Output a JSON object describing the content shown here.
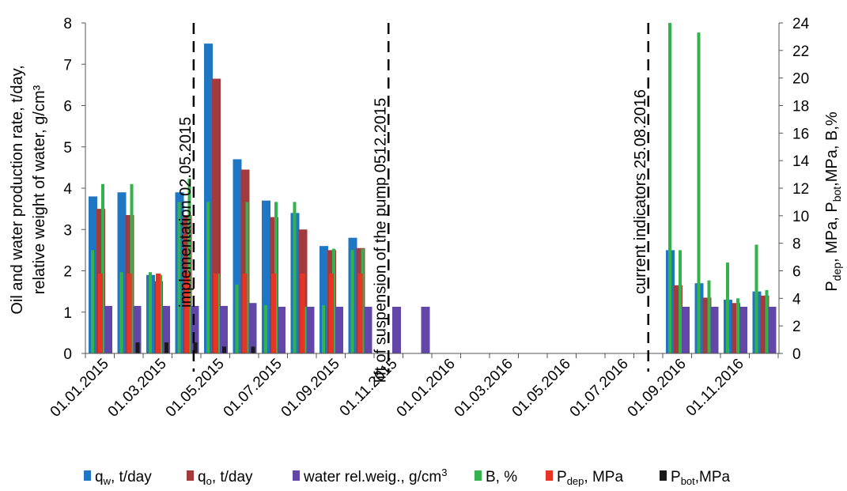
{
  "chart_data": {
    "type": "bar",
    "x_dates": [
      "01.01.2015",
      "01.02.2015",
      "01.03.2015",
      "01.04.2015",
      "01.05.2015",
      "01.06.2015",
      "01.07.2015",
      "01.08.2015",
      "01.09.2015",
      "01.10.2015",
      "01.11.2015",
      "01.12.2015",
      "01.01.2016",
      "01.02.2016",
      "01.03.2016",
      "01.04.2016",
      "01.05.2016",
      "01.06.2016",
      "01.07.2016",
      "01.08.2016",
      "01.09.2016",
      "01.10.2016",
      "01.11.2016",
      "01.12.2016"
    ],
    "x_tick_labels": [
      "01.01.2015",
      "01.03.2015",
      "01.05.2015",
      "01.07.2015",
      "01.09.2015",
      "01.11.2015",
      "01.01.2016",
      "01.03.2016",
      "01.05.2016",
      "01.07.2016",
      "01.09.2016",
      "01.11.2016"
    ],
    "ylabel_left": [
      "Oil and water production rate, t/day,",
      "relative weight of water, g/cm³"
    ],
    "ylabel_right": {
      "p1": "P",
      "s1": "dep",
      "p2": ", MPa, P",
      "s2": "bot",
      "p3": ",MPa, B,%"
    },
    "ylim_left": [
      0,
      8
    ],
    "y_ticks_left": [
      "0",
      "1",
      "2",
      "3",
      "4",
      "5",
      "6",
      "7",
      "8"
    ],
    "ylim_right": [
      0,
      24
    ],
    "y_ticks_right": [
      "0",
      "2",
      "4",
      "6",
      "8",
      "10",
      "12",
      "14",
      "16",
      "18",
      "20",
      "22",
      "24"
    ],
    "series": [
      {
        "key": "qw",
        "color": "#1f77c4",
        "axis": "left",
        "values": [
          3.8,
          3.9,
          1.9,
          3.9,
          7.5,
          4.7,
          3.7,
          3.4,
          2.6,
          2.8,
          null,
          null,
          null,
          null,
          null,
          null,
          null,
          null,
          null,
          null,
          2.5,
          1.7,
          1.3,
          1.5
        ]
      },
      {
        "key": "qo",
        "color": "#a33a3e",
        "axis": "left",
        "values": [
          3.5,
          3.35,
          1.75,
          3.35,
          6.65,
          4.45,
          3.3,
          3.0,
          2.5,
          2.55,
          null,
          null,
          null,
          null,
          null,
          null,
          null,
          null,
          null,
          null,
          1.65,
          1.35,
          1.22,
          1.4
        ]
      },
      {
        "key": "wrw",
        "color": "#6247a8",
        "axis": "left",
        "values": [
          1.15,
          1.15,
          1.15,
          1.15,
          1.15,
          1.22,
          1.13,
          1.13,
          1.13,
          1.13,
          1.13,
          1.13,
          null,
          null,
          null,
          null,
          null,
          null,
          null,
          null,
          1.13,
          1.13,
          1.13,
          1.13
        ]
      },
      {
        "key": "B",
        "color": "#34b24c",
        "axis": "right",
        "pair": [
          [
            7.5,
            12.3
          ],
          [
            5.9,
            12.3
          ],
          [
            5.9,
            5.7
          ],
          [
            11,
            12.7
          ],
          [
            11,
            5.8
          ],
          [
            5,
            11.0
          ],
          [
            3.5,
            11.0
          ],
          [
            11.0,
            3.4
          ],
          [
            3.5,
            7.6
          ],
          [
            7.5,
            7.6
          ],
          null,
          null,
          null,
          null,
          null,
          null,
          null,
          null,
          null,
          null,
          [
            24,
            7.5
          ],
          [
            23.3,
            5.3
          ],
          [
            6.6,
            4.0
          ],
          [
            7.9,
            4.6
          ]
        ]
      },
      {
        "key": "Pdep",
        "color": "#e83425",
        "axis": "right",
        "values": [
          5.8,
          5.8,
          5.8,
          5.8,
          5.8,
          5.8,
          5.8,
          5.8,
          5.8,
          5.8,
          null,
          null,
          null,
          null,
          null,
          null,
          null,
          null,
          null,
          null,
          null,
          null,
          null,
          null
        ]
      },
      {
        "key": "Pbot",
        "color": "#1a1a1a",
        "axis": "right",
        "values": [
          null,
          0.8,
          0.8,
          0.8,
          0.5,
          0.5,
          null,
          null,
          null,
          null,
          null,
          null,
          null,
          null,
          null,
          null,
          null,
          null,
          null,
          null,
          null,
          null,
          null,
          null
        ]
      }
    ],
    "legend": {
      "position": "bottom",
      "items": [
        {
          "key": "qw",
          "color": "#1f77c4",
          "main": "q",
          "sub": "w",
          "rest": ", t/day"
        },
        {
          "key": "qo",
          "color": "#a33a3e",
          "main": "q",
          "sub": "o",
          "rest": ", t/day"
        },
        {
          "key": "wrw",
          "color": "#6247a8",
          "main": "water rel.weig., g/cm",
          "sup": "3",
          "rest": ""
        },
        {
          "key": "B",
          "color": "#34b24c",
          "main": "B, %",
          "rest": ""
        },
        {
          "key": "Pdep",
          "color": "#e83425",
          "main": "P",
          "sub": "dep",
          "rest": ", MPa"
        },
        {
          "key": "Pbot",
          "color": "#1a1a1a",
          "main": "P",
          "sub": "bot",
          "rest": ",MPa"
        }
      ]
    },
    "annotations": [
      {
        "text": "implementation 02.05.2015",
        "at": "02.05.2015",
        "month_index": 3.75
      },
      {
        "text": "lift of suspension of the pump 0512.2015",
        "at": "05.12.2015",
        "month_index": 10.5
      },
      {
        "text": "current indicators 25.08.2016",
        "at": "25.08.2016",
        "month_index": 19.5
      }
    ]
  }
}
